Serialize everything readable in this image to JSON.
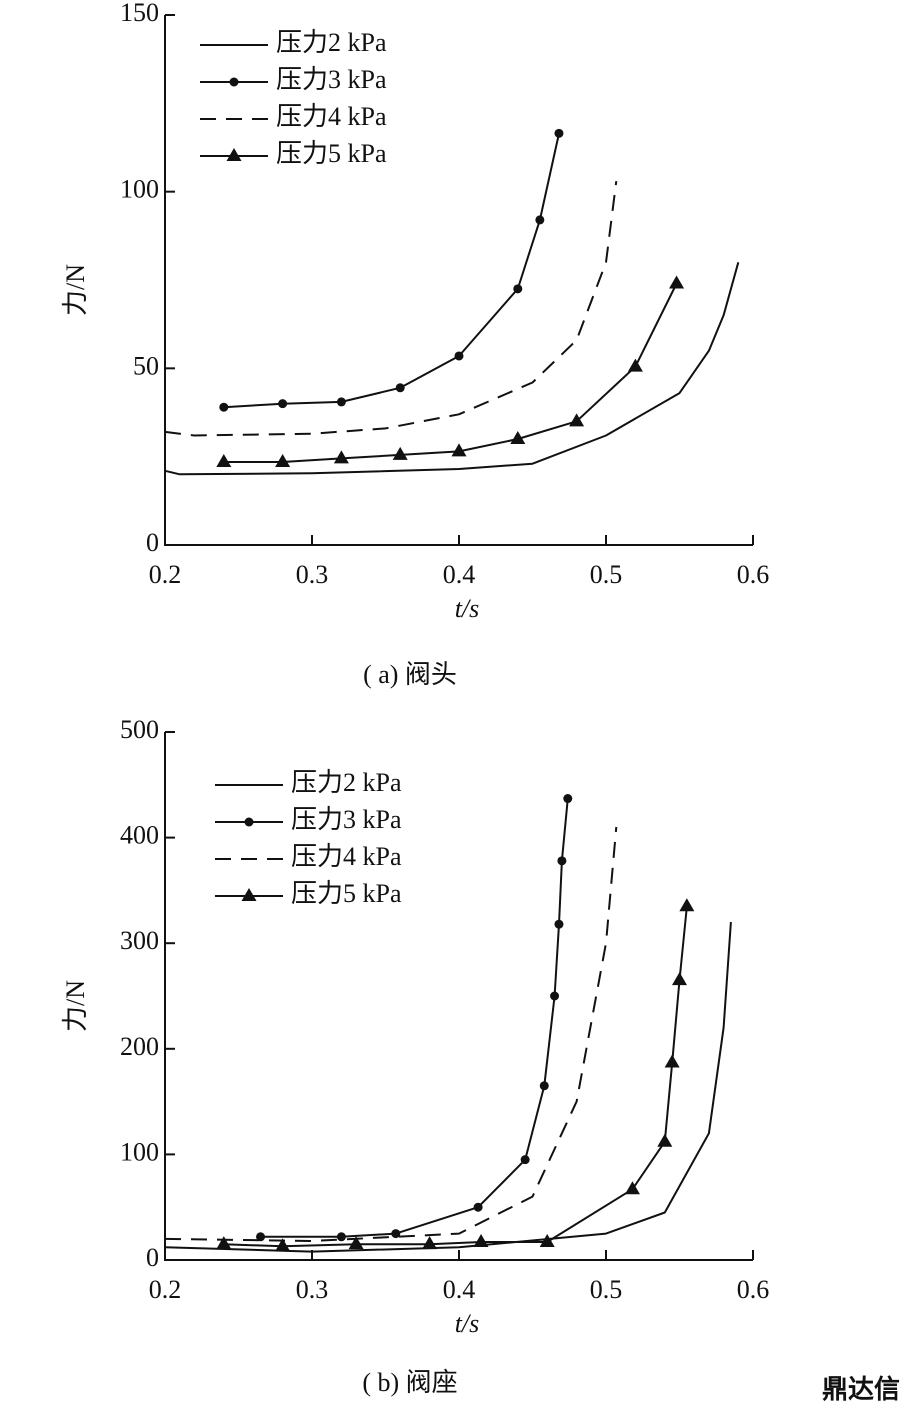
{
  "chart_data": [
    {
      "type": "line",
      "caption": "( a)  阀头",
      "xlabel": "t/s",
      "ylabel": "力/N",
      "xlim": [
        0.2,
        0.6
      ],
      "xticks": [
        0.2,
        0.3,
        0.4,
        0.5,
        0.6
      ],
      "ylim": [
        0,
        150
      ],
      "yticks": [
        0,
        50,
        100,
        150
      ],
      "legend": "upper left",
      "series": [
        {
          "name": "压力2 kPa",
          "color": "#111111",
          "dash": false,
          "marker": null,
          "x": [
            0.2,
            0.21,
            0.3,
            0.4,
            0.45,
            0.5,
            0.55,
            0.57,
            0.58,
            0.59
          ],
          "values": [
            21,
            20,
            20.3,
            21.5,
            23,
            31,
            43,
            55,
            65,
            80
          ]
        },
        {
          "name": "压力3 kPa",
          "color": "#111111",
          "dash": false,
          "marker": "circle",
          "x": [
            0.24,
            0.28,
            0.32,
            0.36,
            0.4,
            0.44,
            0.455,
            0.468
          ],
          "values": [
            39,
            40,
            40.5,
            44.5,
            53.5,
            72.5,
            92,
            116.5
          ]
        },
        {
          "name": "压力4 kPa",
          "color": "#111111",
          "dash": true,
          "marker": null,
          "x": [
            0.2,
            0.22,
            0.3,
            0.35,
            0.4,
            0.45,
            0.48,
            0.5,
            0.507
          ],
          "values": [
            32,
            31,
            31.5,
            33,
            37,
            46,
            58,
            80,
            103
          ]
        },
        {
          "name": "压力5 kPa",
          "color": "#111111",
          "dash": false,
          "marker": "triangle",
          "x": [
            0.24,
            0.28,
            0.32,
            0.36,
            0.4,
            0.44,
            0.48,
            0.52,
            0.548
          ],
          "values": [
            23.5,
            23.5,
            24.5,
            25.5,
            26.5,
            30,
            35,
            50.5,
            74
          ]
        }
      ]
    },
    {
      "type": "line",
      "caption": "( b) 阀座",
      "xlabel": "t/s",
      "ylabel": "力/N",
      "xlim": [
        0.2,
        0.6
      ],
      "xticks": [
        0.2,
        0.3,
        0.4,
        0.5,
        0.6
      ],
      "ylim": [
        0,
        500
      ],
      "yticks": [
        0,
        100,
        200,
        300,
        400,
        500
      ],
      "legend": "upper left",
      "watermark": "鼎达信",
      "series": [
        {
          "name": "压力2 kPa",
          "color": "#111111",
          "dash": false,
          "marker": null,
          "x": [
            0.2,
            0.3,
            0.4,
            0.5,
            0.54,
            0.57,
            0.58,
            0.585
          ],
          "values": [
            12,
            8,
            12,
            25,
            45,
            120,
            220,
            320
          ]
        },
        {
          "name": "压力3 kPa",
          "color": "#111111",
          "dash": false,
          "marker": "circle",
          "x": [
            0.265,
            0.32,
            0.357,
            0.413,
            0.445,
            0.458,
            0.465,
            0.468,
            0.47,
            0.474
          ],
          "values": [
            22,
            22,
            25,
            50,
            95,
            165,
            250,
            318,
            378,
            437
          ]
        },
        {
          "name": "压力4 kPa",
          "color": "#111111",
          "dash": true,
          "marker": null,
          "x": [
            0.2,
            0.3,
            0.4,
            0.45,
            0.48,
            0.5,
            0.507
          ],
          "values": [
            20,
            18,
            25,
            60,
            150,
            300,
            410
          ]
        },
        {
          "name": "压力5 kPa",
          "color": "#111111",
          "dash": false,
          "marker": "triangle",
          "x": [
            0.24,
            0.28,
            0.33,
            0.38,
            0.415,
            0.46,
            0.518,
            0.54,
            0.545,
            0.55,
            0.555
          ],
          "values": [
            15,
            13,
            15,
            15,
            17,
            17,
            67,
            112,
            187,
            265,
            335
          ]
        }
      ]
    }
  ]
}
